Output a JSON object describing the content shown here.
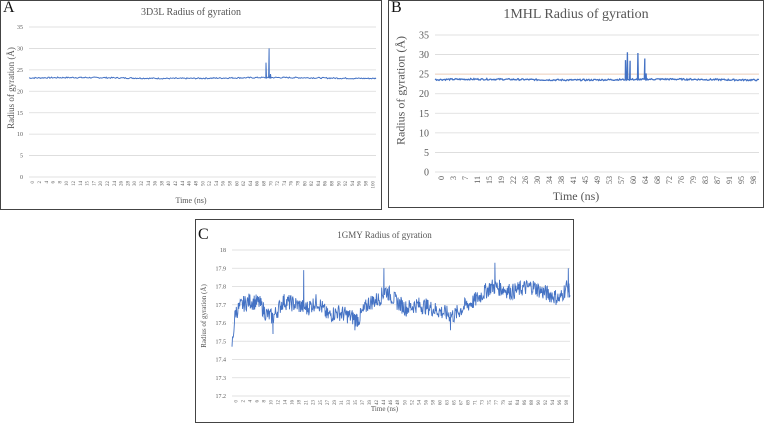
{
  "panels": {
    "A": {
      "letter": "A",
      "title": "3D3L Radius of gyration",
      "xlabel": "Time (ns)",
      "ylabel": "Radius of gyration (Å)"
    },
    "B": {
      "letter": "B",
      "title": "1MHL Radius of gyration",
      "xlabel": "Time (ns)",
      "ylabel": "Radius of gyration (Å)"
    },
    "C": {
      "letter": "C",
      "title": "1GMY Radius of gyration",
      "xlabel": "Time (ns)",
      "ylabel": "Radius of gyration (Å)"
    }
  },
  "colors": {
    "line": "#4472C4",
    "grid": "#d9d9d9",
    "axis_text": "#595959",
    "faint_series": "#f4b183"
  },
  "chart_data": [
    {
      "type": "line",
      "panel": "A",
      "title": "3D3L Radius of gyration",
      "xlabel": "Time (ns)",
      "ylabel": "Radius of gyration (Å)",
      "ylim": [
        0,
        35
      ],
      "yticks": [
        0,
        5,
        10,
        15,
        20,
        25,
        30,
        35
      ],
      "xlim": [
        0,
        100
      ],
      "xticks": [
        "0",
        "2",
        "4",
        "6",
        "8",
        "10",
        "12",
        "14",
        "15",
        "17",
        "20",
        "22",
        "24",
        "26",
        "28",
        "30",
        "32",
        "34",
        "36",
        "38",
        "40",
        "42",
        "44",
        "46",
        "48",
        "50",
        "52",
        "54",
        "56",
        "58",
        "60",
        "62",
        "64",
        "66",
        "68",
        "70",
        "72",
        "74",
        "76",
        "78",
        "80",
        "82",
        "84",
        "86",
        "88",
        "90",
        "92",
        "94",
        "96",
        "98",
        "100"
      ],
      "grid": true,
      "series": [
        {
          "name": "3D3L Rg",
          "baseline": 23.1,
          "noise": 0.15,
          "spikes": [
            {
              "x": 68.3,
              "y": 26.7
            },
            {
              "x": 69.2,
              "y": 30.0
            },
            {
              "x": 69.6,
              "y": 24.0
            }
          ]
        }
      ]
    },
    {
      "type": "line",
      "panel": "B",
      "title": "1MHL Radius of gyration",
      "xlabel": "Time (ns)",
      "ylabel": "Radius of gyration (Å)",
      "ylim": [
        0,
        35
      ],
      "yticks": [
        0,
        5,
        10,
        15,
        20,
        25,
        30,
        35
      ],
      "xlim": [
        0,
        99
      ],
      "xticks": [
        "0",
        "3",
        "7",
        "11",
        "15",
        "19",
        "22",
        "26",
        "30",
        "34",
        "38",
        "41",
        "45",
        "49",
        "53",
        "57",
        "60",
        "64",
        "68",
        "72",
        "76",
        "79",
        "83",
        "87",
        "91",
        "95",
        "98"
      ],
      "grid": true,
      "series": [
        {
          "name": "1MHL Rg",
          "baseline": 23.6,
          "noise": 0.2,
          "spikes": [
            {
              "x": 58.2,
              "y": 28.6
            },
            {
              "x": 58.8,
              "y": 30.6
            },
            {
              "x": 59.6,
              "y": 28.4
            },
            {
              "x": 62.0,
              "y": 30.4
            },
            {
              "x": 64.1,
              "y": 29.0
            },
            {
              "x": 64.5,
              "y": 25.2
            }
          ]
        },
        {
          "name": "faint reference",
          "baseline": 25.0
        }
      ]
    },
    {
      "type": "line",
      "panel": "C",
      "title": "1GMY Radius of gyration",
      "xlabel": "Time (ns)",
      "ylabel": "Radius of gyration (Å)",
      "ylim": [
        17.2,
        18.0
      ],
      "yticks": [
        17.2,
        17.3,
        17.4,
        17.5,
        17.6,
        17.7,
        17.8,
        17.9,
        18
      ],
      "xlim": [
        0,
        99
      ],
      "xticks": [
        "0",
        "2",
        "4",
        "6",
        "8",
        "10",
        "12",
        "14",
        "16",
        "18",
        "21",
        "23",
        "25",
        "27",
        "29",
        "31",
        "33",
        "35",
        "37",
        "39",
        "42",
        "44",
        "46",
        "48",
        "50",
        "52",
        "54",
        "56",
        "58",
        "60",
        "63",
        "65",
        "67",
        "69",
        "71",
        "73",
        "75",
        "77",
        "79",
        "81",
        "84",
        "86",
        "88",
        "90",
        "92",
        "94",
        "96",
        "98"
      ],
      "grid": true,
      "series": [
        {
          "name": "1GMY Rg",
          "trend": {
            "x": [
              0,
              1,
              3,
              5,
              8,
              10,
              12,
              15,
              19,
              22,
              25,
              28,
              31,
              34,
              37,
              40,
              43,
              45,
              48,
              51,
              54,
              57,
              60,
              63,
              65,
              68,
              71,
              74,
              76,
              79,
              82,
              85,
              88,
              91,
              94,
              96,
              98,
              99
            ],
            "y": [
              17.47,
              17.66,
              17.7,
              17.72,
              17.71,
              17.65,
              17.63,
              17.72,
              17.7,
              17.68,
              17.72,
              17.64,
              17.66,
              17.64,
              17.62,
              17.71,
              17.73,
              17.78,
              17.72,
              17.68,
              17.7,
              17.69,
              17.67,
              17.65,
              17.64,
              17.69,
              17.72,
              17.77,
              17.8,
              17.79,
              17.77,
              17.79,
              17.8,
              17.77,
              17.75,
              17.73,
              17.8,
              17.76
            ]
          },
          "noise": 0.045,
          "peaks": [
            {
              "x": 21,
              "y": 17.89
            },
            {
              "x": 44.5,
              "y": 17.9
            },
            {
              "x": 77,
              "y": 17.93
            },
            {
              "x": 98.5,
              "y": 17.9
            }
          ],
          "troughs": [
            {
              "x": 12,
              "y": 17.54
            },
            {
              "x": 64,
              "y": 17.56
            },
            {
              "x": 36,
              "y": 17.56
            }
          ]
        }
      ]
    }
  ]
}
